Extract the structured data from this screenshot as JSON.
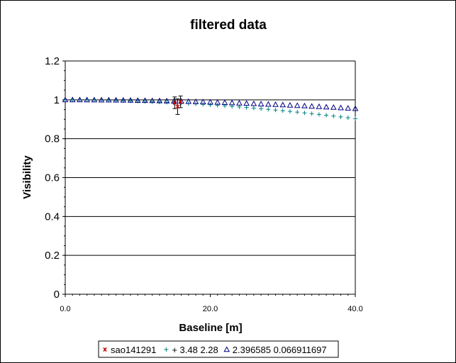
{
  "chart_data": {
    "type": "scatter",
    "title": "filtered data",
    "xlabel": "Baseline [m]",
    "ylabel": "Visibility",
    "xlim": [
      0,
      40
    ],
    "ylim": [
      0,
      1.2
    ],
    "x_ticks": [
      0,
      20,
      40
    ],
    "x_tick_labels": [
      "0.0",
      "20.0",
      "40.0"
    ],
    "y_ticks": [
      0,
      0.2,
      0.4,
      0.6,
      0.8,
      1,
      1.2
    ],
    "y_tick_labels": [
      "0",
      "0.2",
      "0.4",
      "0.6",
      "0.8",
      "1",
      "1.2"
    ],
    "grid": "horizontal major lines",
    "legend_position": "bottom",
    "series": [
      {
        "name": "sao141291",
        "marker": "asterisk",
        "color": "#c00000",
        "points": [
          {
            "x": 15.1,
            "y": 0.985,
            "err": 0.03
          },
          {
            "x": 15.5,
            "y": 0.965,
            "err": 0.04
          },
          {
            "x": 15.9,
            "y": 0.99,
            "err": 0.03
          }
        ]
      },
      {
        "name": "+ 3.48 2.28",
        "marker": "plus",
        "color": "#008080",
        "x": [
          0,
          1,
          2,
          3,
          4,
          5,
          6,
          7,
          8,
          9,
          10,
          11,
          12,
          13,
          14,
          15,
          16,
          17,
          18,
          19,
          20,
          21,
          22,
          23,
          24,
          25,
          26,
          27,
          28,
          29,
          30,
          31,
          32,
          33,
          34,
          35,
          36,
          37,
          38,
          39,
          40
        ],
        "y": [
          1.0,
          1.0,
          0.9997,
          0.9994,
          0.9989,
          0.9983,
          0.9976,
          0.9967,
          0.9957,
          0.9946,
          0.9934,
          0.992,
          0.9905,
          0.9889,
          0.9872,
          0.9854,
          0.9834,
          0.9813,
          0.9792,
          0.9769,
          0.9744,
          0.9719,
          0.9693,
          0.9665,
          0.9636,
          0.9607,
          0.9576,
          0.9544,
          0.9511,
          0.9477,
          0.9441,
          0.9405,
          0.9368,
          0.933,
          0.929,
          0.925,
          0.9209,
          0.9167,
          0.9124,
          0.908,
          0.9035
        ]
      },
      {
        "name": "2.396585 0.066911697",
        "marker": "triangle",
        "color": "#000080",
        "x": [
          0,
          1,
          2,
          3,
          4,
          5,
          6,
          7,
          8,
          9,
          10,
          11,
          12,
          13,
          14,
          15,
          16,
          17,
          18,
          19,
          20,
          21,
          22,
          23,
          24,
          25,
          26,
          27,
          28,
          29,
          30,
          31,
          32,
          33,
          34,
          35,
          36,
          37,
          38,
          39,
          40
        ],
        "y": [
          1.0,
          1.0,
          0.9999,
          0.9997,
          0.9995,
          0.9992,
          0.9989,
          0.9985,
          0.9981,
          0.9976,
          0.997,
          0.9964,
          0.9957,
          0.995,
          0.9942,
          0.9933,
          0.9924,
          0.9915,
          0.9904,
          0.9894,
          0.9882,
          0.9871,
          0.9858,
          0.9845,
          0.9832,
          0.9818,
          0.9803,
          0.9788,
          0.9773,
          0.9757,
          0.974,
          0.9723,
          0.9706,
          0.9688,
          0.9669,
          0.965,
          0.9631,
          0.9611,
          0.9591,
          0.957,
          0.9549
        ]
      }
    ]
  },
  "colors": {
    "plot_background": "#ffffff",
    "grid": "#000000",
    "errorbar": "#000000"
  }
}
